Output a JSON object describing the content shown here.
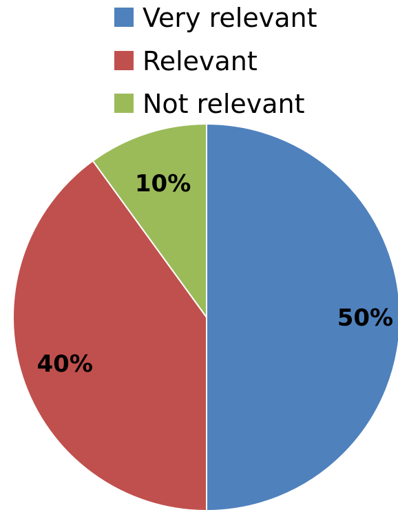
{
  "chart_data": {
    "type": "pie",
    "categories": [
      "Very relevant",
      "Relevant",
      "Not relevant"
    ],
    "values": [
      50,
      40,
      10
    ],
    "data_labels": [
      "50%",
      "40%",
      "10%"
    ],
    "colors": [
      "#4F81BD",
      "#C0504D",
      "#9BBB59"
    ],
    "start_angle": "12 o'clock",
    "direction": "clockwise",
    "legend_position": "top",
    "title": "",
    "xlabel": "",
    "ylabel": ""
  }
}
